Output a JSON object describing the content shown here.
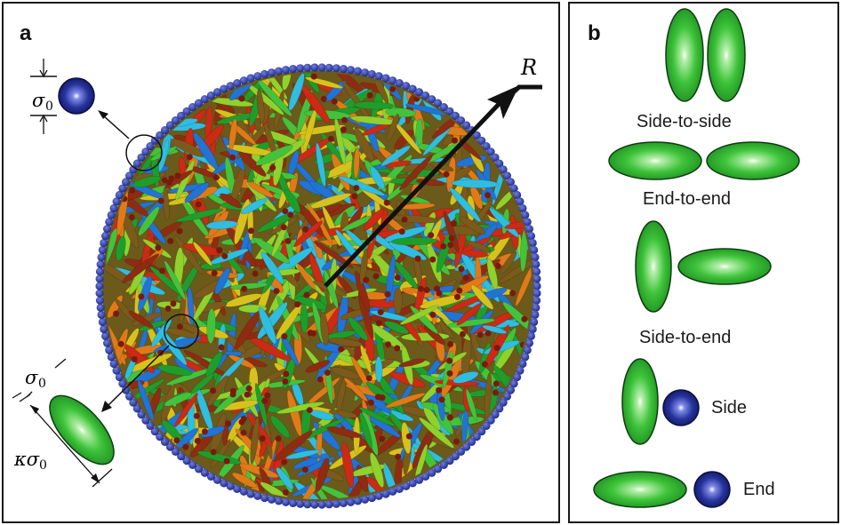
{
  "panel_a": {
    "label": "a",
    "radius_label": "R",
    "sphere_diameter_symbol": "σ",
    "sphere_diameter_sub": "0",
    "rod_width_symbol": "σ",
    "rod_width_sub": "0",
    "rod_length_symbol": "κσ",
    "rod_length_sub": "0"
  },
  "panel_b": {
    "label": "b",
    "contacts": [
      {
        "label": "Side-to-side"
      },
      {
        "label": "End-to-end"
      },
      {
        "label": "Side-to-end"
      },
      {
        "label": "Side"
      },
      {
        "label": "End"
      }
    ]
  },
  "colors": {
    "rod_green": "#2fb52f",
    "sphere_blue": "#23309a",
    "boundary_blue": "#2a3a9e",
    "rod_palette": [
      "#1f9d2b",
      "#45c23c",
      "#8fd12d",
      "#d7c21d",
      "#e07a18",
      "#cc2a14",
      "#8e2c12",
      "#2fbde0",
      "#2173d4",
      "#7c5a1b"
    ]
  }
}
